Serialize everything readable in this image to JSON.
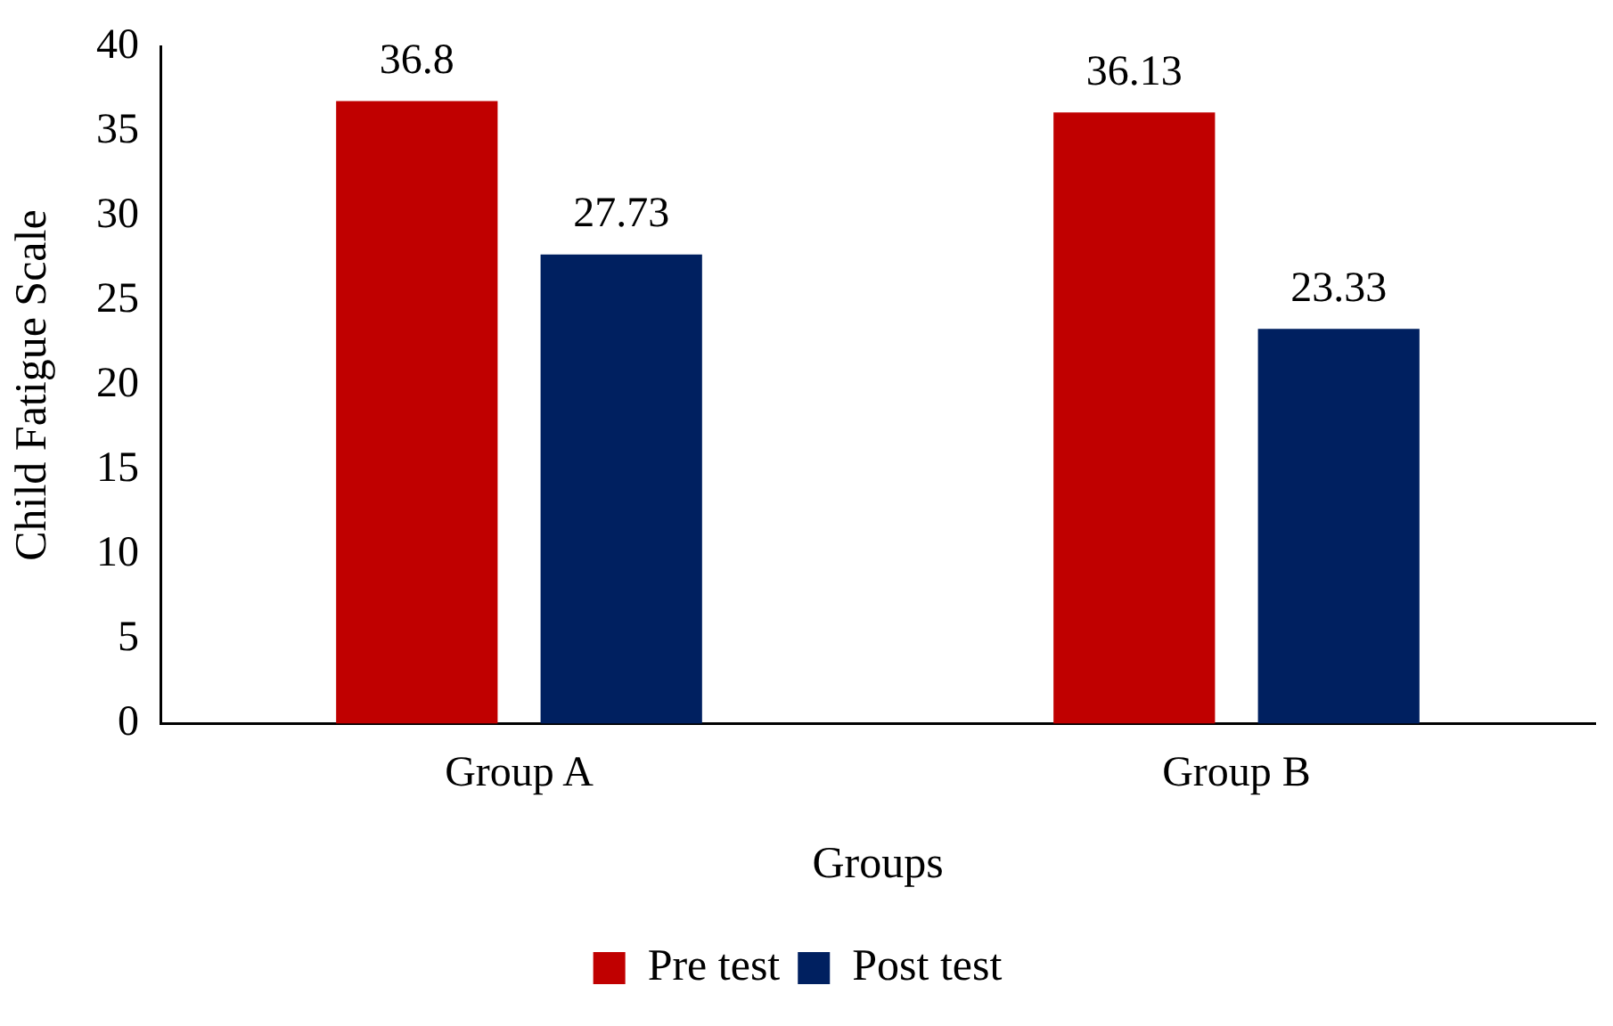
{
  "chart_data": {
    "type": "bar",
    "xlabel": "Groups",
    "ylabel": "Child Fatigue Scale",
    "categories": [
      "Group A",
      "Group B"
    ],
    "series": [
      {
        "name": "Pre test",
        "color": "#c00000",
        "values": [
          36.8,
          36.13
        ]
      },
      {
        "name": "Post test",
        "color": "#002060",
        "values": [
          27.73,
          23.33
        ]
      }
    ],
    "ylim": [
      0,
      40
    ],
    "yticks": [
      0,
      5,
      10,
      15,
      20,
      25,
      30,
      35,
      40
    ],
    "grid": false,
    "legend": "bottom",
    "data_labels": true
  }
}
